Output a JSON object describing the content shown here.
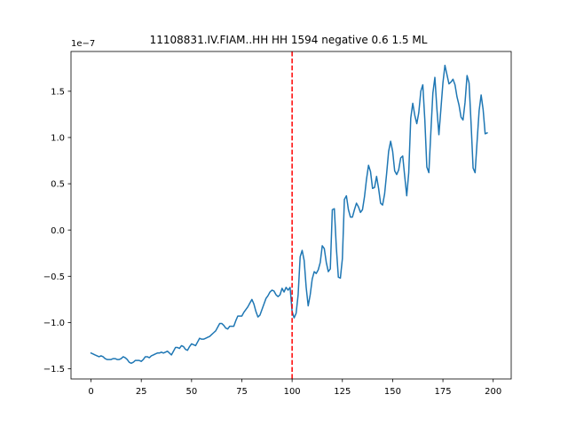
{
  "chart_data": {
    "type": "line",
    "title": "11108831.IV.FIAM..HH HH 1594 negative 0.6 1.5 ML",
    "xlabel": "",
    "ylabel": "",
    "y_offset_label": "1e−7",
    "xlim": [
      -9.95,
      208.95
    ],
    "ylim": [
      -1.61,
      1.93
    ],
    "x_ticks": [
      0,
      25,
      50,
      75,
      100,
      125,
      150,
      175,
      200
    ],
    "x_tick_labels": [
      "0",
      "25",
      "50",
      "75",
      "100",
      "125",
      "150",
      "175",
      "200"
    ],
    "y_ticks": [
      -1.5,
      -1.0,
      -0.5,
      0.0,
      0.5,
      1.0,
      1.5
    ],
    "y_tick_labels": [
      "−1.5",
      "−1.0",
      "−0.5",
      "0.0",
      "0.5",
      "1.0",
      "1.5"
    ],
    "grid": false,
    "line_color": "#1f77b4",
    "vline": {
      "x": 100,
      "color": "#ff0000",
      "style": "dashed"
    },
    "series": [
      {
        "values": [
          -1.33,
          -1.34,
          -1.35,
          -1.36,
          -1.37,
          -1.36,
          -1.37,
          -1.39,
          -1.4,
          -1.4,
          -1.4,
          -1.39,
          -1.39,
          -1.4,
          -1.4,
          -1.39,
          -1.37,
          -1.38,
          -1.4,
          -1.43,
          -1.44,
          -1.43,
          -1.41,
          -1.41,
          -1.41,
          -1.42,
          -1.4,
          -1.37,
          -1.37,
          -1.38,
          -1.36,
          -1.35,
          -1.34,
          -1.33,
          -1.33,
          -1.32,
          -1.33,
          -1.32,
          -1.31,
          -1.33,
          -1.35,
          -1.31,
          -1.27,
          -1.27,
          -1.28,
          -1.25,
          -1.26,
          -1.29,
          -1.3,
          -1.26,
          -1.23,
          -1.24,
          -1.25,
          -1.21,
          -1.17,
          -1.18,
          -1.18,
          -1.17,
          -1.16,
          -1.15,
          -1.13,
          -1.11,
          -1.09,
          -1.05,
          -1.01,
          -1.01,
          -1.03,
          -1.06,
          -1.07,
          -1.04,
          -1.04,
          -1.04,
          -0.98,
          -0.93,
          -0.93,
          -0.93,
          -0.89,
          -0.86,
          -0.83,
          -0.79,
          -0.75,
          -0.8,
          -0.88,
          -0.94,
          -0.92,
          -0.86,
          -0.8,
          -0.74,
          -0.71,
          -0.67,
          -0.65,
          -0.66,
          -0.7,
          -0.72,
          -0.7,
          -0.63,
          -0.67,
          -0.62,
          -0.65,
          -0.62,
          -0.88,
          -0.95,
          -0.9,
          -0.7,
          -0.29,
          -0.22,
          -0.33,
          -0.62,
          -0.82,
          -0.7,
          -0.53,
          -0.45,
          -0.47,
          -0.43,
          -0.35,
          -0.17,
          -0.2,
          -0.35,
          -0.45,
          -0.42,
          0.22,
          0.23,
          -0.19,
          -0.51,
          -0.52,
          -0.31,
          0.33,
          0.37,
          0.22,
          0.14,
          0.14,
          0.22,
          0.29,
          0.25,
          0.19,
          0.22,
          0.36,
          0.55,
          0.7,
          0.63,
          0.45,
          0.46,
          0.58,
          0.45,
          0.29,
          0.27,
          0.39,
          0.61,
          0.85,
          0.96,
          0.85,
          0.64,
          0.6,
          0.65,
          0.78,
          0.8,
          0.58,
          0.37,
          0.62,
          1.21,
          1.37,
          1.24,
          1.15,
          1.27,
          1.5,
          1.57,
          1.19,
          0.68,
          0.62,
          1.06,
          1.48,
          1.65,
          1.31,
          1.03,
          1.31,
          1.59,
          1.78,
          1.68,
          1.58,
          1.6,
          1.63,
          1.57,
          1.44,
          1.35,
          1.22,
          1.19,
          1.38,
          1.67,
          1.59,
          1.15,
          0.67,
          0.62,
          0.96,
          1.29,
          1.46,
          1.3,
          1.04,
          1.05
        ]
      }
    ]
  }
}
